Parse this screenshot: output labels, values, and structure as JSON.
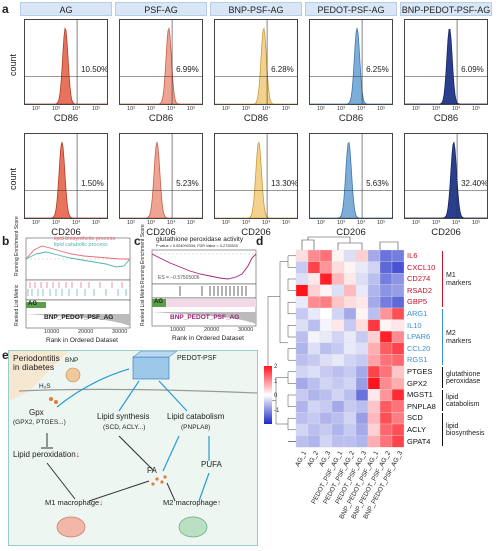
{
  "panel_labels": {
    "a": "a",
    "b": "b",
    "c": "c",
    "d": "d",
    "e": "e"
  },
  "groups": [
    "AG",
    "PSF-AG",
    "BNP-PSF-AG",
    "PEDOT-PSF-AG",
    "BNP-PEDOT-PSF-AG"
  ],
  "flow": {
    "y_label": "count",
    "tick_labels": [
      "10²",
      "10³",
      "10⁴",
      "10⁵"
    ],
    "cd86": {
      "marker": "CD86",
      "percent": [
        "10.50%",
        "6.99%",
        "6.28%",
        "6.25%",
        "6.09%"
      ]
    },
    "cd206": {
      "marker": "CD206",
      "percent": [
        "1.50%",
        "5.23%",
        "13.30%",
        "5.63%",
        "32.40%"
      ]
    },
    "colors": [
      "#e8735c",
      "#efa493",
      "#f2d28c",
      "#7eaed8",
      "#2b3f8f"
    ],
    "outline_colors": [
      "#b23a24",
      "#c55e4a",
      "#c89b3c",
      "#3d77b0",
      "#1a2566"
    ]
  },
  "gsea_b": {
    "legend": [
      "lipid biosynthetic process",
      "lipid catabolic process"
    ],
    "ylabel": "Running Enrichment Score",
    "ylabel2": "Ranked List Metric",
    "group_tag": "AG",
    "group_tag2": "BNP_PEDOT_PSF_AG",
    "xlabel": "Rank in Ordered Dataset",
    "xticks": [
      "10000",
      "20000",
      "30000"
    ]
  },
  "gsea_c": {
    "title": "glutathione peroxidase activity",
    "stats": "P value = 0.004093334; FDR Value = 0.2725333",
    "es": "ES = –0.57505006",
    "ylabel": "Running Enrichment Score",
    "ylabel2": "Ranked List Metric",
    "group_tag": "AG",
    "group_tag2": "BNP_PEDOT_PSF_AG",
    "xlabel": "Rank in Ordered Dataset",
    "xticks": [
      "10000",
      "20000",
      "30000"
    ]
  },
  "heatmap": {
    "genes": [
      "IL6",
      "CXCL10",
      "CD274",
      "RSAD2",
      "GBP5",
      "ARG1",
      "IL10",
      "LPAR6",
      "CCL20",
      "RGS1",
      "PTGES",
      "GPX2",
      "MGST1",
      "PNPLA8",
      "SCD",
      "ACLY",
      "GPAT4"
    ],
    "gene_colors": [
      "#c8102e",
      "#c8102e",
      "#c8102e",
      "#c8102e",
      "#c8102e",
      "#3a8fd1",
      "#3a8fd1",
      "#3a8fd1",
      "#3a8fd1",
      "#3a8fd1",
      "#111111",
      "#111111",
      "#111111",
      "#111111",
      "#111111",
      "#111111",
      "#111111"
    ],
    "samples": [
      "AG_1",
      "AG_2",
      "AG_3",
      "PEDOT_PSF_AG_1",
      "PEDOT_PSF_AG_2",
      "PEDOT_PSF_AG_3",
      "BNP_PEDOT_PSF_AG_1",
      "BNP_PEDOT_PSF_AG_2",
      "BNP_PEDOT_PSF_AG_3"
    ],
    "groups": [
      {
        "label": "M1\nmarkers",
        "rows": [
          0,
          4
        ],
        "color": "#c8102e"
      },
      {
        "label": "M2\nmarkers",
        "rows": [
          5,
          9
        ],
        "color": "#3a8fd1"
      },
      {
        "label": "glutathione\nperoxidase",
        "rows": [
          10,
          11
        ],
        "color": "#111111"
      },
      {
        "label": "lipid\ncatabolism",
        "rows": [
          12,
          13
        ],
        "color": "#111111"
      },
      {
        "label": "lipid\nbiosynthesis",
        "rows": [
          14,
          16
        ],
        "color": "#111111"
      }
    ],
    "scale_ticks": [
      "2",
      "1",
      "0",
      "-1"
    ],
    "values": [
      [
        0.3,
        1.0,
        1.2,
        0.1,
        -0.3,
        0.4,
        -0.8,
        -1.3,
        -1.2
      ],
      [
        -0.5,
        1.6,
        0.9,
        0.3,
        0.1,
        -0.2,
        -0.4,
        -1.4,
        -1.6
      ],
      [
        -0.3,
        0.2,
        1.9,
        0.6,
        0.2,
        -0.3,
        -0.6,
        -1.2,
        -1.0
      ],
      [
        2.0,
        0.4,
        0.1,
        -0.3,
        0.6,
        -0.2,
        -0.7,
        -1.0,
        -0.9
      ],
      [
        -0.2,
        1.0,
        1.1,
        0.5,
        0.3,
        0.2,
        -0.8,
        -1.2,
        -1.4
      ],
      [
        -0.5,
        -0.2,
        0.0,
        -0.4,
        -0.8,
        0.1,
        -0.6,
        0.9,
        1.5
      ],
      [
        -0.3,
        -0.6,
        -0.1,
        0.2,
        -0.5,
        0.3,
        1.7,
        0.1,
        0.2
      ],
      [
        -0.6,
        -0.1,
        -0.2,
        -0.4,
        -0.2,
        -0.5,
        0.4,
        1.9,
        1.0
      ],
      [
        -0.7,
        -0.3,
        -0.6,
        -0.5,
        -0.2,
        -0.3,
        0.7,
        1.4,
        1.6
      ],
      [
        -0.6,
        -0.5,
        -0.3,
        -0.2,
        -0.4,
        -0.5,
        0.8,
        1.2,
        1.3
      ],
      [
        -0.4,
        -0.3,
        -0.5,
        -0.6,
        -0.5,
        -0.8,
        1.6,
        1.2,
        0.5
      ],
      [
        -0.8,
        -0.6,
        -0.4,
        -0.5,
        -0.4,
        -0.9,
        2.0,
        1.0,
        0.7
      ],
      [
        -0.5,
        -0.7,
        -0.6,
        -0.4,
        -0.6,
        -1.3,
        0.2,
        0.9,
        1.8
      ],
      [
        -0.7,
        -0.4,
        -0.5,
        -0.8,
        -0.5,
        -0.6,
        0.5,
        1.4,
        1.2
      ],
      [
        -0.6,
        -0.5,
        -0.7,
        -0.6,
        -0.4,
        -0.9,
        0.6,
        1.5,
        1.1
      ],
      [
        -0.4,
        -0.6,
        -0.5,
        -0.7,
        -0.5,
        -0.8,
        0.4,
        1.3,
        1.5
      ],
      [
        -0.6,
        -0.7,
        -0.4,
        -0.6,
        -0.6,
        -0.7,
        0.7,
        1.2,
        1.6
      ]
    ]
  },
  "scheme": {
    "title": "Periodontitis\nin diabetes",
    "bnp": "BNP",
    "h2s": "H₂S",
    "pedot": "PEDOT-PSF",
    "gpx": "Gpx",
    "gpx_sub": "(GPX2, PTGES...)",
    "lipid_synth": "Lipid synthesis",
    "lipid_synth_sub": "(SCD, ACLY...)",
    "lipid_cat": "Lipid catabolism",
    "lipid_cat_sub": "(PNPLA8)",
    "lipid_perox": "Lipid peroxidation",
    "fa": "FA",
    "pufa": "PUFA",
    "m1": "M1 macrophage",
    "m2": "M2 macrophage",
    "down_arrow": "↓",
    "up_arrow": "↑"
  }
}
